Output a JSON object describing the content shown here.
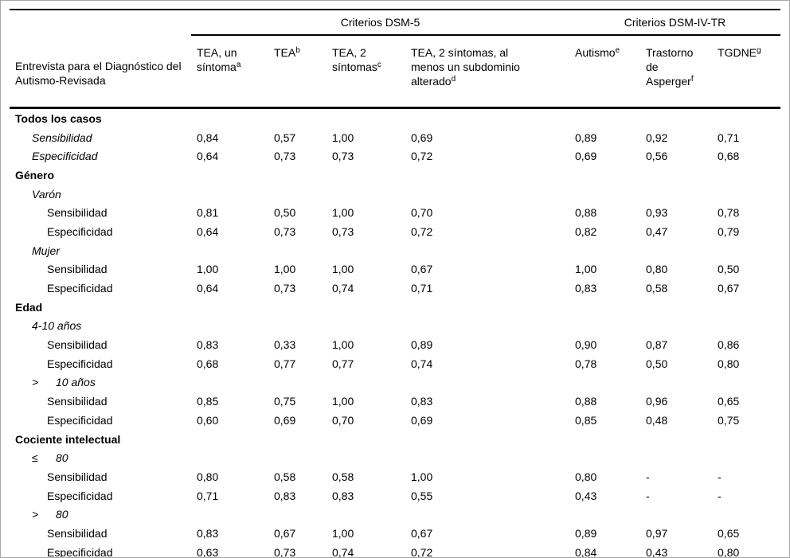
{
  "colors": {
    "text": "#000000",
    "frame_border": "#a6a6a6"
  },
  "table": {
    "stub_header": "Entrevista para el Diagnóstico del Autismo-Revisada",
    "spanners": [
      "Criterios DSM-5",
      "Criterios DSM-IV-TR"
    ],
    "columns": [
      {
        "text": "TEA, un síntoma",
        "sup": "a"
      },
      {
        "text": "TEA",
        "sup": "b"
      },
      {
        "text": "TEA, 2 síntomas",
        "sup": "c"
      },
      {
        "text": "TEA, 2 síntomas, al menos un subdominio alterado",
        "sup": "d"
      },
      {
        "text": "Autismo",
        "sup": "e"
      },
      {
        "text": "Trastorno de Asperger",
        "sup": "f"
      },
      {
        "text": "TGDNE",
        "sup": "g"
      }
    ],
    "rows": [
      {
        "type": "section",
        "label": "Todos los casos"
      },
      {
        "type": "measure-l1",
        "label": "Sensibilidad",
        "values": [
          "0,84",
          "0,57",
          "1,00",
          "0,69",
          "0,89",
          "0,92",
          "0,71"
        ]
      },
      {
        "type": "measure-l1",
        "label": "Especificidad",
        "values": [
          "0,64",
          "0,73",
          "0,73",
          "0,72",
          "0,69",
          "0,56",
          "0,68"
        ]
      },
      {
        "type": "section",
        "label": "Género"
      },
      {
        "type": "subsection",
        "label": "Varón"
      },
      {
        "type": "measure-l2",
        "label": "Sensibilidad",
        "values": [
          "0,81",
          "0,50",
          "1,00",
          "0,70",
          "0,88",
          "0,93",
          "0,78"
        ]
      },
      {
        "type": "measure-l2",
        "label": "Especificidad",
        "values": [
          "0,64",
          "0,73",
          "0,73",
          "0,72",
          "0,82",
          "0,47",
          "0,79"
        ]
      },
      {
        "type": "subsection",
        "label": "Mujer"
      },
      {
        "type": "measure-l2",
        "label": "Sensibilidad",
        "values": [
          "1,00",
          "1,00",
          "1,00",
          "0,67",
          "1,00",
          "0,80",
          "0,50"
        ]
      },
      {
        "type": "measure-l2",
        "label": "Especificidad",
        "values": [
          "0,64",
          "0,73",
          "0,74",
          "0,71",
          "0,83",
          "0,58",
          "0,67"
        ]
      },
      {
        "type": "section",
        "label": "Edad"
      },
      {
        "type": "subsection",
        "label": "4-10 años"
      },
      {
        "type": "measure-l2",
        "label": "Sensibilidad",
        "values": [
          "0,83",
          "0,33",
          "1,00",
          "0,89",
          "0,90",
          "0,87",
          "0,86"
        ]
      },
      {
        "type": "measure-l2",
        "label": "Especificidad",
        "values": [
          "0,68",
          "0,77",
          "0,77",
          "0,74",
          "0,78",
          "0,50",
          "0,80"
        ]
      },
      {
        "type": "subsection",
        "prefix": ">",
        "label": "10 años"
      },
      {
        "type": "measure-l2",
        "label": "Sensibilidad",
        "values": [
          "0,85",
          "0,75",
          "1,00",
          "0,83",
          "0,88",
          "0,96",
          "0,65"
        ]
      },
      {
        "type": "measure-l2",
        "label": "Especificidad",
        "values": [
          "0,60",
          "0,69",
          "0,70",
          "0,69",
          "0,85",
          "0,48",
          "0,75"
        ]
      },
      {
        "type": "section",
        "label": "Cociente intelectual"
      },
      {
        "type": "subsection",
        "prefix": "≤",
        "label": "80"
      },
      {
        "type": "measure-l2",
        "label": "Sensibilidad",
        "values": [
          "0,80",
          "0,58",
          "0,58",
          "1,00",
          "0,80",
          "-",
          "-"
        ]
      },
      {
        "type": "measure-l2",
        "label": "Especificidad",
        "values": [
          "0,71",
          "0,83",
          "0,83",
          "0,55",
          "0,43",
          "-",
          "-"
        ]
      },
      {
        "type": "subsection",
        "prefix": ">",
        "label": "80"
      },
      {
        "type": "measure-l2",
        "label": "Sensibilidad",
        "values": [
          "0,83",
          "0,67",
          "1,00",
          "0,67",
          "0,89",
          "0,97",
          "0,65"
        ]
      },
      {
        "type": "measure-l2",
        "label": "Especificidad",
        "values": [
          "0,63",
          "0,73",
          "0,74",
          "0,72",
          "0,84",
          "0,43",
          "0,80"
        ]
      }
    ]
  }
}
